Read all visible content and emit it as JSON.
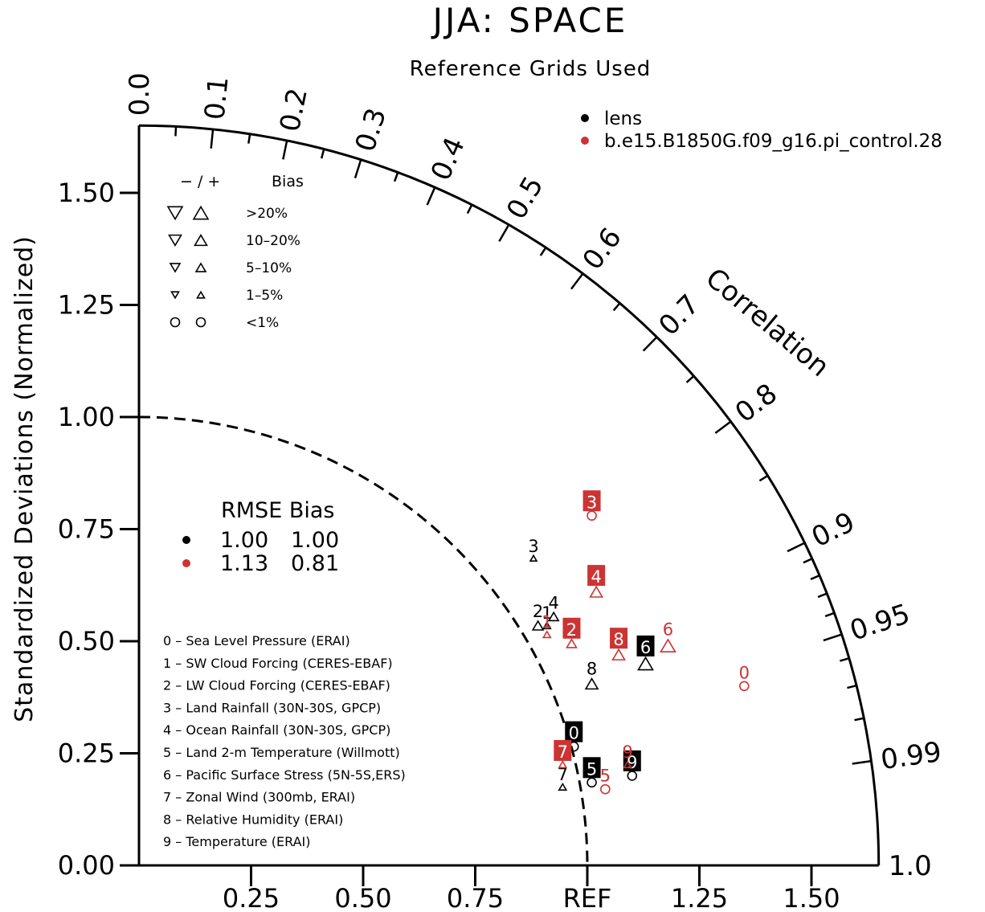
{
  "chart_data": {
    "type": "taylor",
    "title": "JJA: SPACE",
    "subtitle": "Reference Grids Used",
    "ylabel": "Standardized Deviations (Normalized)",
    "correlation_label": "Correlation",
    "ref_label": "REF",
    "std_range": [
      0,
      1.65
    ],
    "y_ticks": [
      "0.00",
      "0.25",
      "0.50",
      "0.75",
      "1.00",
      "1.25",
      "1.50"
    ],
    "x_ticks": [
      "0.25",
      "0.50",
      "0.75",
      "REF",
      "1.25",
      "1.50"
    ],
    "correlation_ticks": [
      "0.0",
      "0.1",
      "0.2",
      "0.3",
      "0.4",
      "0.5",
      "0.6",
      "0.7",
      "0.8",
      "0.9",
      "0.95",
      "0.99",
      "1.0"
    ],
    "cases": [
      {
        "name": "lens",
        "color": "#000000"
      },
      {
        "name": "b.e15.B1850G.f09_g16.pi_control.28",
        "color": "#cc3333"
      }
    ],
    "bias_legend": {
      "header_sign": "− / +",
      "header_label": "Bias",
      "rows": [
        {
          "label": ">20%",
          "size": 18
        },
        {
          "label": "10–20%",
          "size": 15
        },
        {
          "label": "5–10%",
          "size": 12
        },
        {
          "label": "1–5%",
          "size": 9
        },
        {
          "label": "<1%",
          "size": 11,
          "shape": "circle"
        }
      ]
    },
    "rmse_table": {
      "header": "RMSE Bias",
      "rows": [
        {
          "rmse": "1.00",
          "bias": "1.00",
          "color": "#000000"
        },
        {
          "rmse": "1.13",
          "bias": "0.81",
          "color": "#cc3333"
        }
      ]
    },
    "variables": [
      "0 – Sea Level Pressure (ERAI)",
      "1 – SW Cloud Forcing (CERES-EBAF)",
      "2 – LW Cloud Forcing (CERES-EBAF)",
      "3 – Land Rainfall (30N-30S, GPCP)",
      "4 – Ocean Rainfall (30N-30S, GPCP)",
      "5 – Land 2-m Temperature (Willmott)",
      "6 – Pacific Surface Stress (5N-5S,ERS)",
      "7 – Zonal Wind (300mb, ERAI)",
      "8 – Relative Humidity (ERAI)",
      "9 – Temperature (ERAI)"
    ],
    "points": [
      {
        "case": 0,
        "label": "0",
        "x": 0.97,
        "y": 0.265,
        "boxed": true,
        "marker": "circle",
        "size": 11
      },
      {
        "case": 0,
        "label": "1",
        "x": 0.91,
        "y": 0.535,
        "boxed": false,
        "marker": "triangle",
        "size": 9
      },
      {
        "case": 0,
        "label": "2",
        "x": 0.89,
        "y": 0.535,
        "boxed": false,
        "marker": "triangle",
        "size": 13
      },
      {
        "case": 0,
        "label": "3",
        "x": 0.88,
        "y": 0.685,
        "boxed": false,
        "marker": "triangle",
        "size": 8
      },
      {
        "case": 0,
        "label": "4",
        "x": 0.925,
        "y": 0.555,
        "boxed": false,
        "marker": "triangle",
        "size": 12
      },
      {
        "case": 0,
        "label": "5",
        "x": 1.01,
        "y": 0.185,
        "boxed": true,
        "marker": "circle",
        "size": 11
      },
      {
        "case": 0,
        "label": "6",
        "x": 1.13,
        "y": 0.45,
        "boxed": true,
        "marker": "triangle",
        "size": 18
      },
      {
        "case": 0,
        "label": "7",
        "x": 0.945,
        "y": 0.175,
        "boxed": false,
        "marker": "triangle",
        "size": 9
      },
      {
        "case": 0,
        "label": "8",
        "x": 1.01,
        "y": 0.405,
        "boxed": false,
        "marker": "triangle",
        "size": 15
      },
      {
        "case": 0,
        "label": "9",
        "x": 1.1,
        "y": 0.2,
        "boxed": true,
        "marker": "circle",
        "size": 11
      },
      {
        "case": 1,
        "label": "0",
        "x": 1.35,
        "y": 0.4,
        "boxed": false,
        "marker": "circle",
        "size": 11
      },
      {
        "case": 1,
        "label": "1",
        "x": 0.91,
        "y": 0.515,
        "boxed": false,
        "marker": "triangle",
        "size": 9
      },
      {
        "case": 1,
        "label": "2",
        "x": 0.965,
        "y": 0.495,
        "boxed": true,
        "marker": "triangle",
        "size": 12
      },
      {
        "case": 1,
        "label": "3",
        "x": 1.01,
        "y": 0.78,
        "boxed": true,
        "marker": "circle",
        "size": 11
      },
      {
        "case": 1,
        "label": "4",
        "x": 1.02,
        "y": 0.61,
        "boxed": true,
        "marker": "triangle",
        "size": 15
      },
      {
        "case": 1,
        "label": "5",
        "x": 1.04,
        "y": 0.17,
        "boxed": false,
        "marker": "circle",
        "size": 11
      },
      {
        "case": 1,
        "label": "6",
        "x": 1.18,
        "y": 0.49,
        "boxed": false,
        "marker": "triangle",
        "size": 18
      },
      {
        "case": 1,
        "label": "7",
        "x": 0.945,
        "y": 0.225,
        "boxed": true,
        "marker": "triangle",
        "size": 9
      },
      {
        "case": 1,
        "label": "8",
        "x": 1.07,
        "y": 0.47,
        "boxed": true,
        "marker": "triangle",
        "size": 15
      },
      {
        "case": 1,
        "label": "9",
        "x": 1.09,
        "y": 0.225,
        "boxed": false,
        "marker": "triangle",
        "size": 9
      }
    ]
  }
}
